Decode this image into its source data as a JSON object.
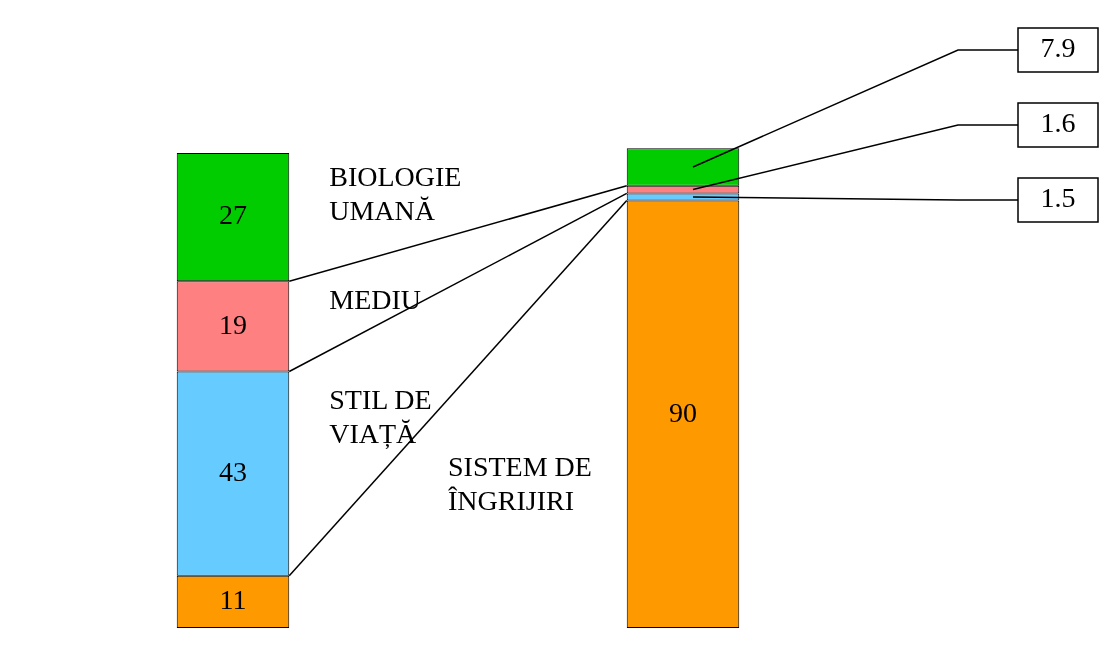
{
  "chart_data": {
    "type": "bar",
    "stacked": true,
    "categories": [
      null,
      null
    ],
    "series": [
      {
        "name": "SISTEM DE ÎNGRIJIRI",
        "color": "#ff9900",
        "values": [
          11,
          90
        ],
        "value_labels": [
          "11",
          "90"
        ]
      },
      {
        "name": "STIL DE VIAȚĂ",
        "color": "#66ccff",
        "values": [
          43,
          1.5
        ],
        "value_labels": [
          "43",
          null
        ]
      },
      {
        "name": "MEDIU",
        "color": "#ff8080",
        "values": [
          19,
          1.6
        ],
        "value_labels": [
          "19",
          null
        ]
      },
      {
        "name": "BIOLOGIE UMANĂ",
        "color": "#00cc00",
        "values": [
          27,
          7.9
        ],
        "value_labels": [
          "27",
          null
        ]
      }
    ],
    "annotations": [
      "7.9",
      "1.6",
      "1.5"
    ],
    "tick_labels": false
  }
}
